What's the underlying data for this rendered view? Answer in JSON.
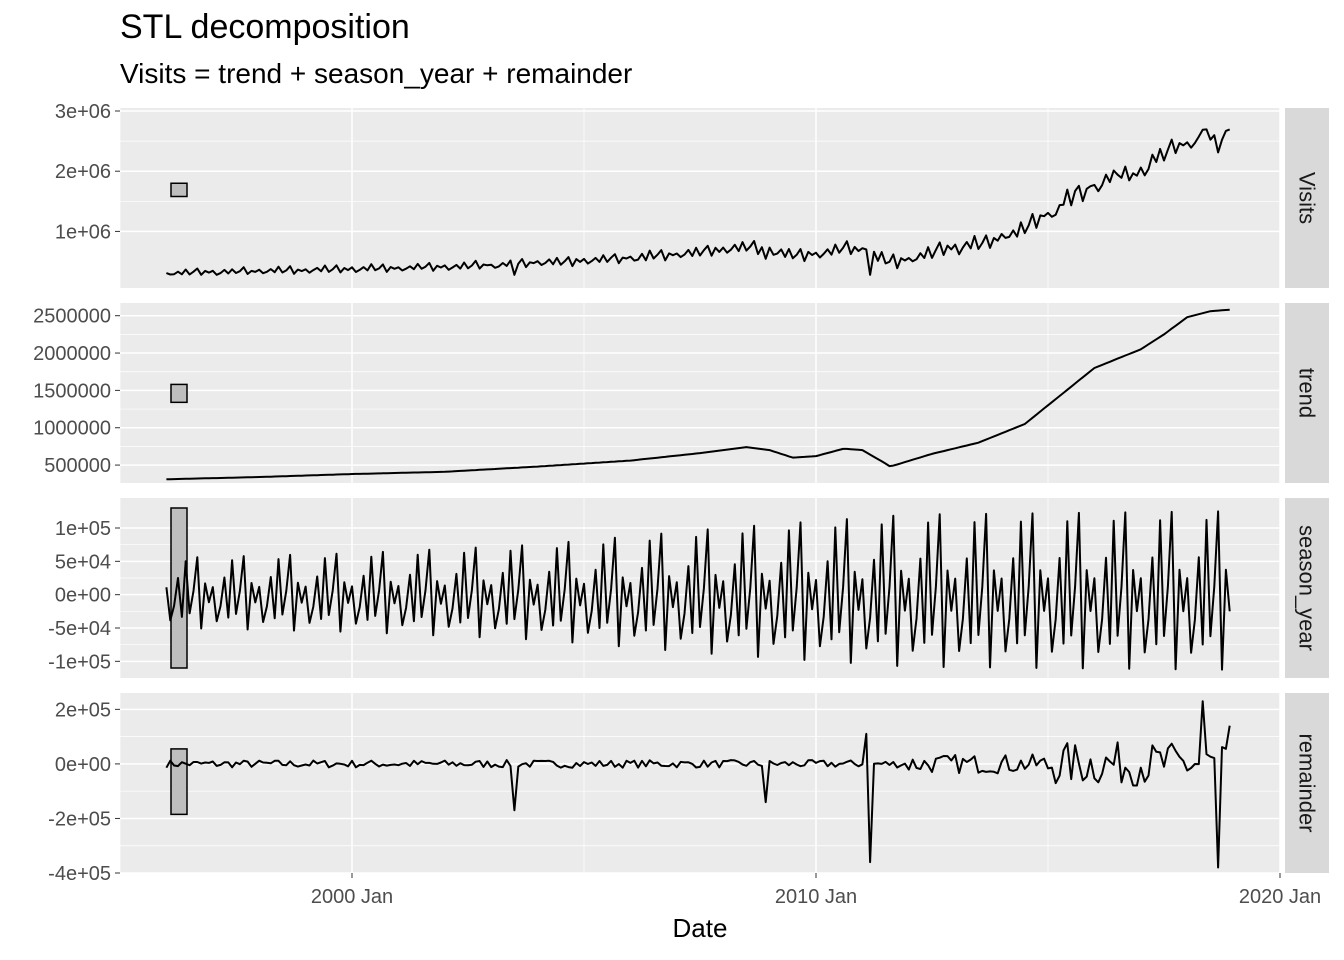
{
  "title": "STL decomposition",
  "subtitle": "Visits = trend + season_year + remainder",
  "chart_data": {
    "type": "line",
    "xlabel": "Date",
    "x_ticks": [
      {
        "date": "2000-01-01",
        "label": "2000 Jan"
      },
      {
        "date": "2010-01-01",
        "label": "2010 Jan"
      },
      {
        "date": "2020-01-01",
        "label": "2020 Jan"
      }
    ],
    "x_range": [
      "1995-01-01",
      "2020-01-01"
    ],
    "start": "1996-01",
    "end": "2018-12",
    "grid": true,
    "panels": [
      {
        "name": "Visits",
        "ylim": [
          60000,
          3050000
        ],
        "y_ticks": [
          {
            "value": 1000000,
            "label": "1e+06"
          },
          {
            "value": 2000000,
            "label": "2e+06"
          },
          {
            "value": 3000000,
            "label": "3e+06"
          }
        ],
        "scale_bar": [
          1580000,
          1800000
        ],
        "knots": [
          [
            1996.0,
            310000
          ],
          [
            1998.0,
            350000
          ],
          [
            2000.0,
            400000
          ],
          [
            2002.0,
            450000
          ],
          [
            2004.0,
            500000
          ],
          [
            2006.0,
            600000
          ],
          [
            2008.0,
            700000
          ],
          [
            2009.0,
            650000
          ],
          [
            2010.0,
            720000
          ],
          [
            2011.0,
            600000
          ],
          [
            2011.5,
            520000
          ],
          [
            2012.0,
            620000
          ],
          [
            2013.0,
            820000
          ],
          [
            2014.0,
            1050000
          ],
          [
            2015.0,
            1400000
          ],
          [
            2016.0,
            1800000
          ],
          [
            2017.0,
            2150000
          ],
          [
            2018.0,
            2500000
          ],
          [
            2018.9,
            2580000
          ]
        ]
      },
      {
        "name": "trend",
        "ylim": [
          260000,
          2670000
        ],
        "y_ticks": [
          {
            "value": 500000,
            "label": "500000"
          },
          {
            "value": 1000000,
            "label": "1000000"
          },
          {
            "value": 1500000,
            "label": "1500000"
          },
          {
            "value": 2000000,
            "label": "2000000"
          },
          {
            "value": 2500000,
            "label": "2500000"
          }
        ],
        "scale_bar": [
          1340000,
          1580000
        ],
        "knots": [
          [
            1996.0,
            310000
          ],
          [
            1998.0,
            340000
          ],
          [
            2000.0,
            380000
          ],
          [
            2002.0,
            410000
          ],
          [
            2004.0,
            480000
          ],
          [
            2006.0,
            560000
          ],
          [
            2007.5,
            660000
          ],
          [
            2008.5,
            740000
          ],
          [
            2009.0,
            700000
          ],
          [
            2009.5,
            600000
          ],
          [
            2010.0,
            620000
          ],
          [
            2010.6,
            720000
          ],
          [
            2011.0,
            700000
          ],
          [
            2011.5,
            520000
          ],
          [
            2011.6,
            480000
          ],
          [
            2012.5,
            650000
          ],
          [
            2013.5,
            800000
          ],
          [
            2014.5,
            1050000
          ],
          [
            2015.0,
            1300000
          ],
          [
            2015.5,
            1550000
          ],
          [
            2016.0,
            1800000
          ],
          [
            2017.0,
            2050000
          ],
          [
            2017.5,
            2250000
          ],
          [
            2018.0,
            2480000
          ],
          [
            2018.5,
            2560000
          ],
          [
            2018.9,
            2580000
          ]
        ]
      },
      {
        "name": "season_year",
        "ylim": [
          -125000,
          145000
        ],
        "y_ticks": [
          {
            "value": -100000,
            "label": "-1e+05"
          },
          {
            "value": -50000,
            "label": "-5e+04"
          },
          {
            "value": 0,
            "label": "0e+00"
          },
          {
            "value": 50000,
            "label": "5e+04"
          },
          {
            "value": 100000,
            "label": "1e+05"
          }
        ],
        "scale_bar": [
          -110000,
          130000
        ],
        "amplitude_knots": [
          [
            1996.0,
            55000
          ],
          [
            2000.0,
            62000
          ],
          [
            2004.0,
            75000
          ],
          [
            2008.0,
            100000
          ],
          [
            2012.0,
            120000
          ],
          [
            2018.9,
            125000
          ]
        ]
      },
      {
        "name": "remainder",
        "ylim": [
          -400000,
          260000
        ],
        "y_ticks": [
          {
            "value": -400000,
            "label": "-4e+05"
          },
          {
            "value": -200000,
            "label": "-2e+05"
          },
          {
            "value": 0,
            "label": "0e+00"
          },
          {
            "value": 200000,
            "label": "2e+05"
          }
        ],
        "scale_bar": [
          -185000,
          55000
        ],
        "spikes": [
          [
            2003.5,
            -170000
          ],
          [
            2008.9,
            -140000
          ],
          [
            2011.2,
            -360000
          ],
          [
            2011.1,
            110000
          ],
          [
            2018.3,
            230000
          ],
          [
            2018.7,
            -380000
          ],
          [
            2018.95,
            140000
          ]
        ]
      }
    ]
  },
  "colors": {
    "panel_bg": "#ebebeb",
    "grid": "#ffffff",
    "strip_bg": "#d9d9d9",
    "line": "#000000",
    "scale_bar": "#bebebe"
  }
}
